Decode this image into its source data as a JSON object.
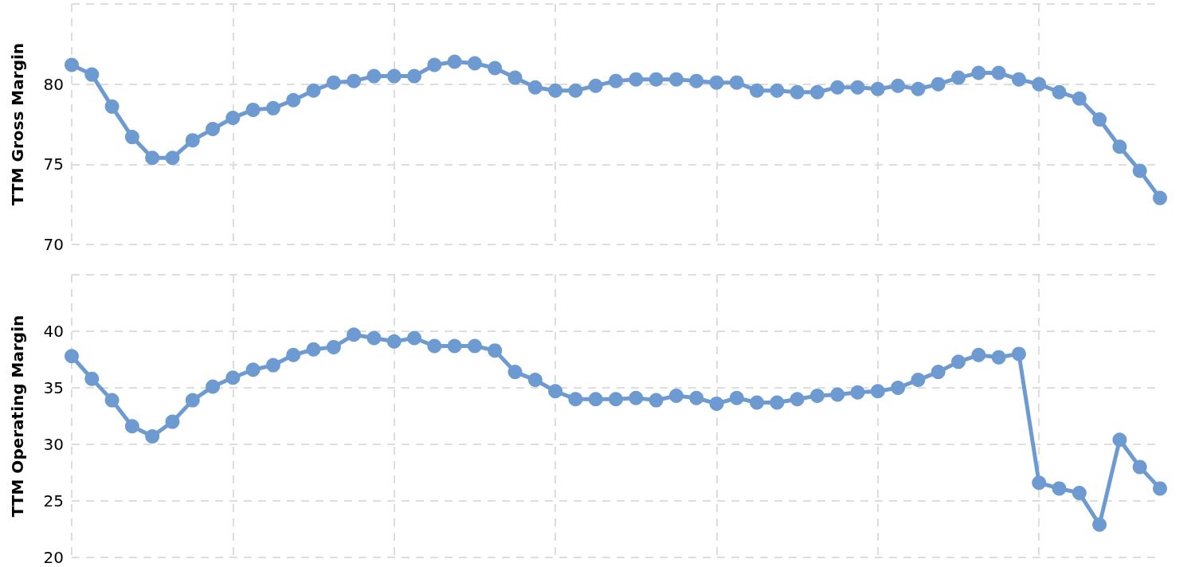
{
  "chart_data": [
    {
      "type": "line",
      "ylabel": "TTM Gross Margin",
      "categories": [
        null,
        null,
        null,
        null,
        null,
        null,
        null,
        null,
        null,
        null,
        null,
        null,
        null,
        null,
        null,
        null,
        null,
        null,
        null,
        null,
        null,
        null,
        null,
        null,
        null,
        null,
        null,
        null,
        null,
        null,
        null,
        null,
        null,
        null,
        null,
        null,
        null,
        null,
        null,
        null,
        null,
        null,
        null,
        null,
        null,
        null,
        null,
        null,
        null,
        null,
        null,
        null,
        null,
        null,
        null
      ],
      "series": [
        {
          "color": "#6d9bd1",
          "values": [
            81.2,
            80.6,
            78.6,
            76.7,
            75.4,
            75.4,
            76.5,
            77.2,
            77.9,
            78.4,
            78.5,
            79.0,
            79.6,
            80.1,
            80.2,
            80.5,
            80.5,
            80.5,
            81.2,
            81.4,
            81.3,
            81.0,
            80.4,
            79.8,
            79.6,
            79.6,
            79.9,
            80.2,
            80.3,
            80.3,
            80.3,
            80.2,
            80.1,
            80.1,
            79.6,
            79.6,
            79.5,
            79.5,
            79.8,
            79.8,
            79.7,
            79.9,
            79.7,
            80.0,
            80.4,
            80.7,
            80.7,
            80.3,
            80.0,
            79.5,
            79.1,
            77.8,
            76.1,
            74.6,
            72.9
          ]
        }
      ],
      "ylim": [
        70,
        85
      ],
      "yticks": [
        70,
        75,
        80,
        {
          "value": 85,
          "label": null
        }
      ],
      "grid": true,
      "marker": "circle",
      "tick_labels": "y"
    },
    {
      "type": "line",
      "ylabel": "TTM Operating Margin",
      "categories": [
        null,
        null,
        null,
        null,
        null,
        null,
        null,
        null,
        null,
        null,
        null,
        null,
        null,
        null,
        null,
        null,
        null,
        null,
        null,
        null,
        null,
        null,
        null,
        null,
        null,
        null,
        null,
        null,
        null,
        null,
        null,
        null,
        null,
        null,
        null,
        null,
        null,
        null,
        null,
        null,
        null,
        null,
        null,
        null,
        null,
        null,
        null,
        null,
        null,
        null,
        null,
        null,
        null,
        null,
        null
      ],
      "series": [
        {
          "color": "#6d9bd1",
          "values": [
            37.8,
            35.8,
            33.9,
            31.6,
            30.7,
            32.0,
            33.9,
            35.1,
            35.9,
            36.6,
            37.0,
            37.9,
            38.4,
            38.6,
            39.7,
            39.4,
            39.1,
            39.4,
            38.7,
            38.7,
            38.7,
            38.3,
            36.4,
            35.7,
            34.7,
            34.0,
            34.0,
            34.0,
            34.1,
            33.9,
            34.3,
            34.1,
            33.6,
            34.1,
            33.7,
            33.7,
            34.0,
            34.3,
            34.4,
            34.6,
            34.7,
            35.0,
            35.7,
            36.4,
            37.3,
            37.9,
            37.7,
            38.0,
            26.6,
            26.1,
            25.7,
            22.9,
            30.4,
            28.0,
            26.1
          ]
        }
      ],
      "ylim": [
        20,
        45
      ],
      "yticks": [
        20,
        25,
        30,
        35,
        40,
        {
          "value": 45,
          "label": null
        }
      ],
      "grid": true,
      "marker": "circle",
      "tick_labels": "y"
    }
  ]
}
